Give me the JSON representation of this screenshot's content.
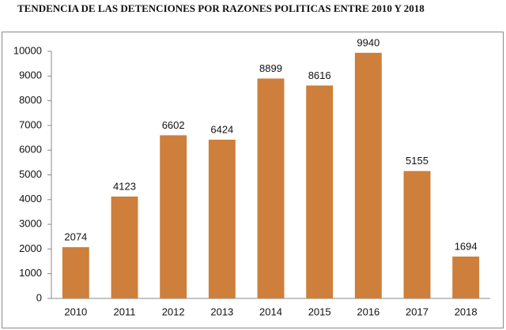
{
  "chart_data": {
    "type": "bar",
    "title": "TENDENCIA DE LAS DETENCIONES POR RAZONES POLITICAS ENTRE 2010 Y 2018",
    "categories": [
      "2010",
      "2011",
      "2012",
      "2013",
      "2014",
      "2015",
      "2016",
      "2017",
      "2018"
    ],
    "values": [
      2074,
      4123,
      6602,
      6424,
      8899,
      8616,
      9940,
      5155,
      1694
    ],
    "color": "#cd7f3b",
    "ylim": [
      0,
      10000
    ],
    "yticks": [
      0,
      1000,
      2000,
      3000,
      4000,
      5000,
      6000,
      7000,
      8000,
      9000,
      10000
    ],
    "grid": false
  }
}
